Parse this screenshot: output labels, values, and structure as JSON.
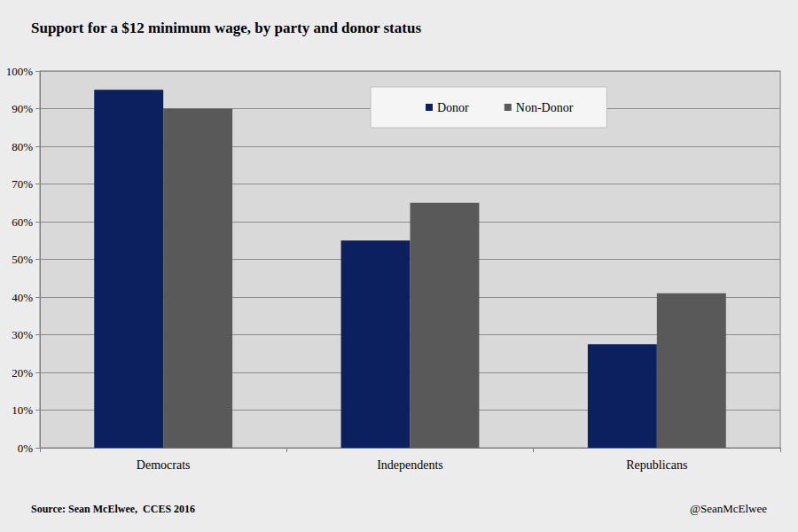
{
  "chart_data": {
    "type": "bar",
    "title": "Support for a $12 minimum wage, by party and donor status",
    "categories": [
      "Democrats",
      "Independents",
      "Republicans"
    ],
    "series": [
      {
        "name": "Donor",
        "color": "#0c1f5e",
        "values": [
          95,
          55,
          27.5
        ]
      },
      {
        "name": "Non-Donor",
        "color": "#595959",
        "values": [
          90,
          65,
          41
        ]
      }
    ],
    "ylim": [
      0,
      100
    ],
    "yticks": [
      {
        "value": 0,
        "label": "0%"
      },
      {
        "value": 10,
        "label": "10%"
      },
      {
        "value": 20,
        "label": "20%"
      },
      {
        "value": 30,
        "label": "30%"
      },
      {
        "value": 40,
        "label": "40%"
      },
      {
        "value": 50,
        "label": "50%"
      },
      {
        "value": 60,
        "label": "60%"
      },
      {
        "value": 70,
        "label": "70%"
      },
      {
        "value": 80,
        "label": "80%"
      },
      {
        "value": 90,
        "label": "90%"
      },
      {
        "value": 100,
        "label": "100%"
      }
    ],
    "grid": true,
    "legend": "top",
    "source": "Source: Sean McElwee,  CCES 2016",
    "credit": "@SeanMcElwee"
  }
}
